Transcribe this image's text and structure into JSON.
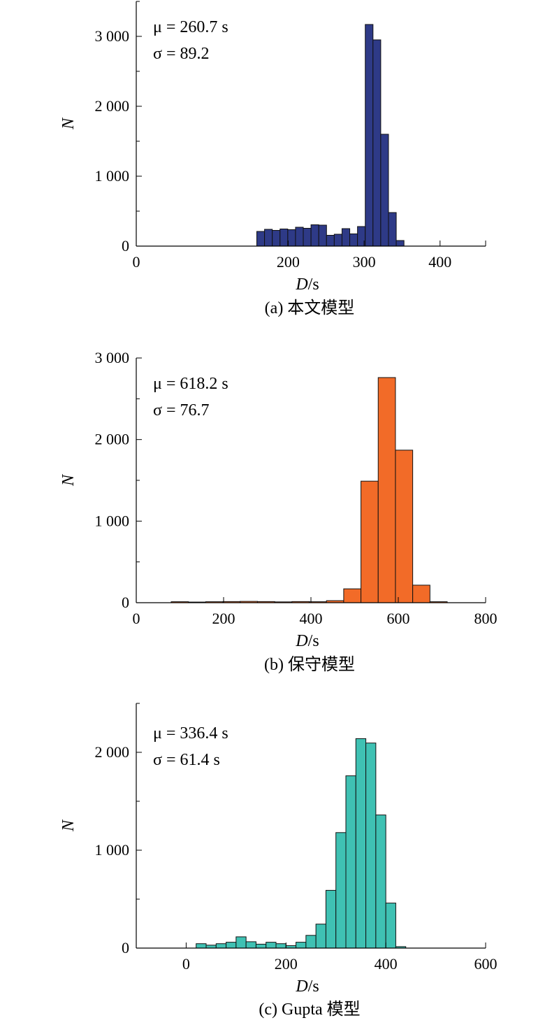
{
  "chart_data": [
    {
      "type": "bar",
      "id": "a",
      "caption": "(a) 本文模型",
      "stats": {
        "mu": "μ = 260.7 s",
        "sigma": "σ = 89.2"
      },
      "xlabel": {
        "var": "D",
        "unit": "/s"
      },
      "ylabel": "N",
      "xlim": [
        0,
        460
      ],
      "ylim": [
        0,
        3500
      ],
      "xticks": [
        0,
        200,
        300,
        400
      ],
      "xtick_labels": [
        "0",
        "200",
        "300",
        "400"
      ],
      "yticks": [
        0,
        1000,
        2000,
        3000
      ],
      "ytick_labels": [
        "0",
        "1 000",
        "2 000",
        "3 000"
      ],
      "bin_width": 10.2,
      "bin_start": 158.7,
      "values": [
        210,
        240,
        225,
        245,
        235,
        270,
        255,
        305,
        300,
        155,
        170,
        250,
        175,
        280,
        3170,
        2950,
        1600,
        480,
        80
      ],
      "fill": "#2e3a87"
    },
    {
      "type": "bar",
      "id": "b",
      "caption": "(b) 保守模型",
      "stats": {
        "mu": "μ = 618.2 s",
        "sigma": "σ = 76.7"
      },
      "xlabel": {
        "var": "D",
        "unit": "/s"
      },
      "ylabel": "N",
      "xlim": [
        0,
        800
      ],
      "ylim": [
        0,
        3000
      ],
      "xticks": [
        0,
        200,
        400,
        600,
        800
      ],
      "xtick_labels": [
        "0",
        "200",
        "400",
        "600",
        "800"
      ],
      "yticks": [
        0,
        1000,
        2000,
        3000
      ],
      "ytick_labels": [
        "0",
        "1 000",
        "2 000",
        "3 000"
      ],
      "bin_width": 39.5,
      "bin_start": 80,
      "values": [
        12,
        8,
        12,
        14,
        16,
        14,
        10,
        14,
        12,
        25,
        170,
        1490,
        2760,
        1870,
        215,
        12
      ],
      "fill": "#f26b28"
    },
    {
      "type": "bar",
      "id": "c",
      "caption": "(c) Gupta 模型",
      "stats": {
        "mu": "μ = 336.4 s",
        "sigma": "σ = 61.4 s"
      },
      "xlabel": {
        "var": "D",
        "unit": "/s"
      },
      "ylabel": "N",
      "xlim": [
        -100,
        600
      ],
      "ylim": [
        0,
        2500
      ],
      "xticks": [
        0,
        200,
        400,
        600
      ],
      "xtick_labels": [
        "0",
        "200",
        "400",
        "600"
      ],
      "yticks": [
        0,
        1000,
        2000
      ],
      "ytick_labels": [
        "0",
        "1 000",
        "2 000"
      ],
      "bin_width": 20,
      "bin_start": 20,
      "values": [
        45,
        30,
        45,
        60,
        115,
        65,
        40,
        60,
        45,
        25,
        60,
        130,
        245,
        590,
        1180,
        1760,
        2140,
        2095,
        1360,
        460,
        15
      ],
      "fill": "#3fc1b3"
    }
  ]
}
